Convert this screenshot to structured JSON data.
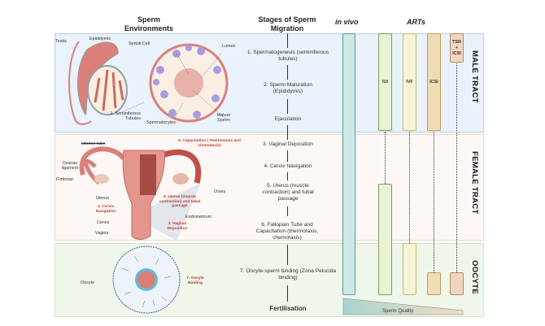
{
  "headers": {
    "environments": "Sperm Environments",
    "stages": "Stages of Sperm Migration",
    "in_vivo": "in vivo",
    "arts": "ARTs"
  },
  "regions": {
    "male": "MALE TRACT",
    "female": "FEMALE TRACT",
    "oocyte": "OOCYTE"
  },
  "male_labels": {
    "testis": "Testis",
    "epididymis": "Epididymis",
    "sertoli": "Sertoli Cell",
    "lumen": "Lumen",
    "tubules": "1. Seminiferous Tubules",
    "spermatocytes": "Spermatocytes",
    "mature": "Mature Sperm"
  },
  "female_labels": {
    "uterine_tube": "Uterine tube",
    "ovarian_ligament": "Ovarian ligament",
    "fimbriae": "Fimbriae",
    "uterus": "Uterus",
    "cervix": "Cervix",
    "vagina": "Vagina",
    "ovary": "Ovary",
    "endometrium": "Endometrium",
    "capacitation": "6. Capacitation ( Thermotaxis and chemotaxis)",
    "uterus_passage": "5. Uterus (muscle contraction) and tubal passage",
    "cervix_nav": "4. Cervix Navigation",
    "vaginal_dep": "3. Vaginal Deposition"
  },
  "oocyte_labels": {
    "oocyte": "Oocyte",
    "binding": "7. Oocyte Binding"
  },
  "stages": [
    "1. Spermatogenesis (seminiferous tubules)",
    "2. Sperm Maturation (Epididymis)",
    "Ejaculation",
    "3. Vaginal Deposition",
    "4. Cervix Navigation",
    "5. Uterus (muscle contraction) and tubal passage",
    "6. Fallopian Tube and Capacitation (thermotaxis, chemotaxis)",
    "7. Oocyte-sperm binding (Zona Pelucida binding)",
    "Fertilisation"
  ],
  "arts": {
    "iui": "IUI",
    "ivf": "IVF",
    "icsi": "ICSI",
    "tsr": "TSR + ICSI"
  },
  "sperm_quality": "Sperm Quality",
  "colors": {
    "male_bg": "#eaf2fb",
    "female_bg": "#fdf8f5",
    "oocyte_bg": "#eef7ea",
    "in_vivo": "#cde8e6",
    "iui": "#e8f3d6",
    "ivf": "#f6f3d6",
    "icsi": "#f0dcb4",
    "tsr": "#f0d6c0",
    "tissue": "#d9807a"
  }
}
